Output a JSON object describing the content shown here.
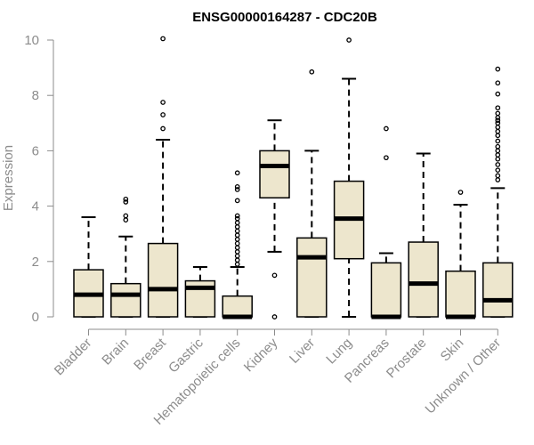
{
  "chart_data": {
    "type": "boxplot",
    "title": "ENSG00000164287 - CDC20B",
    "xlabel": "",
    "ylabel": "Expression",
    "ylim": [
      0,
      10
    ],
    "yticks": [
      0,
      2,
      4,
      6,
      8,
      10
    ],
    "box_fill": "#ede6cd",
    "box_stroke": "#000000",
    "axis_color": "#8c8c8c",
    "categories": [
      "Bladder",
      "Brain",
      "Breast",
      "Gastric",
      "Hematopoietic cells",
      "Kidney",
      "Liver",
      "Lung",
      "Pancreas",
      "Prostate",
      "Skin",
      "Unknown / Other"
    ],
    "boxes": [
      {
        "category": "Bladder",
        "min": 0,
        "q1": 0,
        "median": 0.8,
        "q3": 1.7,
        "max": 3.6,
        "outliers": []
      },
      {
        "category": "Brain",
        "min": 0,
        "q1": 0,
        "median": 0.8,
        "q3": 1.2,
        "max": 2.9,
        "outliers": [
          3.5,
          3.65,
          4.15,
          4.25
        ]
      },
      {
        "category": "Breast",
        "min": 0,
        "q1": 0,
        "median": 1.0,
        "q3": 2.65,
        "max": 6.4,
        "outliers": [
          6.8,
          7.3,
          7.75,
          10.05
        ]
      },
      {
        "category": "Gastric",
        "min": 0,
        "q1": 0,
        "median": 1.05,
        "q3": 1.3,
        "max": 1.8,
        "outliers": []
      },
      {
        "category": "Hematopoietic cells",
        "min": 0,
        "q1": 0,
        "median": 0,
        "q3": 0.75,
        "max": 1.8,
        "outliers": [
          1.9,
          2.05,
          2.2,
          2.35,
          2.5,
          2.65,
          2.8,
          2.95,
          3.1,
          3.25,
          3.4,
          3.55,
          3.65,
          4.2,
          4.6,
          4.7,
          5.2
        ]
      },
      {
        "category": "Kidney",
        "min": 2.35,
        "q1": 4.3,
        "median": 5.45,
        "q3": 6.0,
        "max": 7.1,
        "outliers": [
          0,
          1.5
        ]
      },
      {
        "category": "Liver",
        "min": 0,
        "q1": 0,
        "median": 2.15,
        "q3": 2.85,
        "max": 6.0,
        "outliers": [
          8.85
        ]
      },
      {
        "category": "Lung",
        "min": 0,
        "q1": 2.1,
        "median": 3.55,
        "q3": 4.9,
        "max": 8.6,
        "outliers": [
          10.0
        ]
      },
      {
        "category": "Pancreas",
        "min": 0,
        "q1": 0,
        "median": 0,
        "q3": 1.95,
        "max": 2.3,
        "outliers": [
          5.75,
          6.8
        ]
      },
      {
        "category": "Prostate",
        "min": 0,
        "q1": 0,
        "median": 1.2,
        "q3": 2.7,
        "max": 5.9,
        "outliers": []
      },
      {
        "category": "Skin",
        "min": 0,
        "q1": 0,
        "median": 0,
        "q3": 1.65,
        "max": 4.05,
        "outliers": [
          4.5
        ]
      },
      {
        "category": "Unknown / Other",
        "min": 0,
        "q1": 0,
        "median": 0.6,
        "q3": 1.95,
        "max": 4.65,
        "outliers": [
          4.95,
          5.1,
          5.3,
          5.5,
          5.7,
          5.85,
          6.0,
          6.15,
          6.35,
          6.55,
          6.7,
          6.85,
          7.0,
          7.1,
          7.2,
          7.35,
          7.55,
          8.05,
          8.45,
          8.95
        ]
      }
    ]
  }
}
